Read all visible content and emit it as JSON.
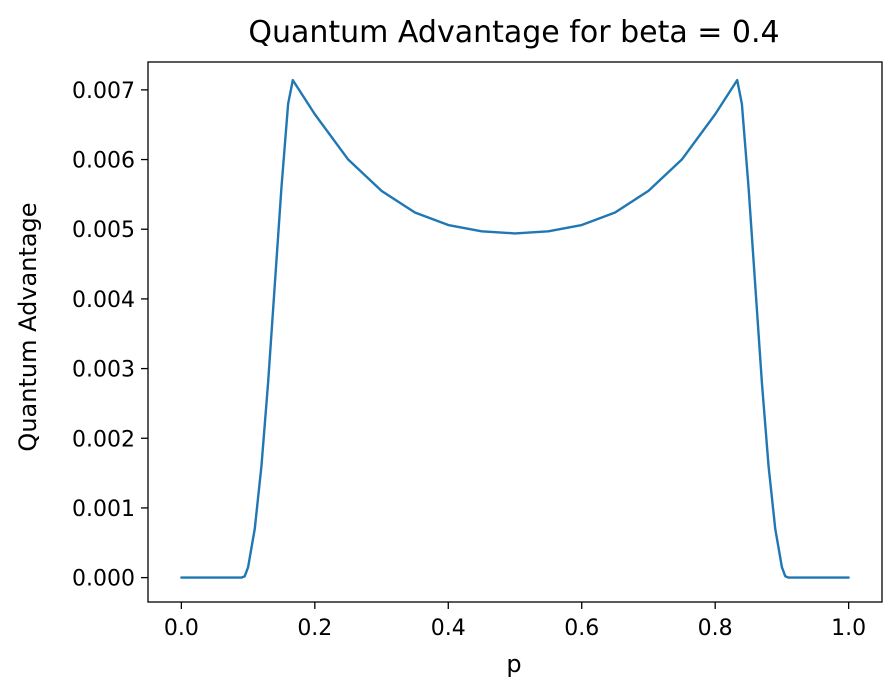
{
  "chart_data": {
    "type": "line",
    "title": "Quantum Advantage for beta = 0.4",
    "xlabel": "p",
    "ylabel": "Quantum Advantage",
    "xlim": [
      -0.05,
      1.05
    ],
    "ylim": [
      -0.00035,
      0.0074
    ],
    "grid": false,
    "legend": "none",
    "colors": {
      "series": "#1f77b4"
    },
    "x_ticks": [
      {
        "value": 0.0,
        "label": "0.0"
      },
      {
        "value": 0.2,
        "label": "0.2"
      },
      {
        "value": 0.4,
        "label": "0.4"
      },
      {
        "value": 0.6,
        "label": "0.6"
      },
      {
        "value": 0.8,
        "label": "0.8"
      },
      {
        "value": 1.0,
        "label": "1.0"
      }
    ],
    "y_ticks": [
      {
        "value": 0.0,
        "label": "0.000"
      },
      {
        "value": 0.001,
        "label": "0.001"
      },
      {
        "value": 0.002,
        "label": "0.002"
      },
      {
        "value": 0.003,
        "label": "0.003"
      },
      {
        "value": 0.004,
        "label": "0.004"
      },
      {
        "value": 0.005,
        "label": "0.005"
      },
      {
        "value": 0.006,
        "label": "0.006"
      },
      {
        "value": 0.007,
        "label": "0.007"
      }
    ],
    "series": [
      {
        "x": [
          0.0,
          0.05,
          0.09,
          0.095,
          0.1,
          0.11,
          0.12,
          0.13,
          0.14,
          0.15,
          0.16,
          0.167,
          0.2,
          0.25,
          0.3,
          0.35,
          0.4,
          0.45,
          0.5,
          0.55,
          0.6,
          0.65,
          0.7,
          0.75,
          0.8,
          0.833,
          0.84,
          0.85,
          0.86,
          0.87,
          0.88,
          0.89,
          0.9,
          0.905,
          0.91,
          0.95,
          1.0
        ],
        "y": [
          0.0,
          0.0,
          0.0,
          2e-05,
          0.00015,
          0.0007,
          0.0016,
          0.0028,
          0.0042,
          0.0056,
          0.0068,
          0.00714,
          0.00665,
          0.006,
          0.00555,
          0.00524,
          0.00506,
          0.00497,
          0.00494,
          0.00497,
          0.00506,
          0.00524,
          0.00555,
          0.006,
          0.00665,
          0.00714,
          0.0068,
          0.0056,
          0.0042,
          0.0028,
          0.0016,
          0.0007,
          0.00015,
          2e-05,
          0.0,
          0.0,
          0.0
        ]
      }
    ]
  }
}
